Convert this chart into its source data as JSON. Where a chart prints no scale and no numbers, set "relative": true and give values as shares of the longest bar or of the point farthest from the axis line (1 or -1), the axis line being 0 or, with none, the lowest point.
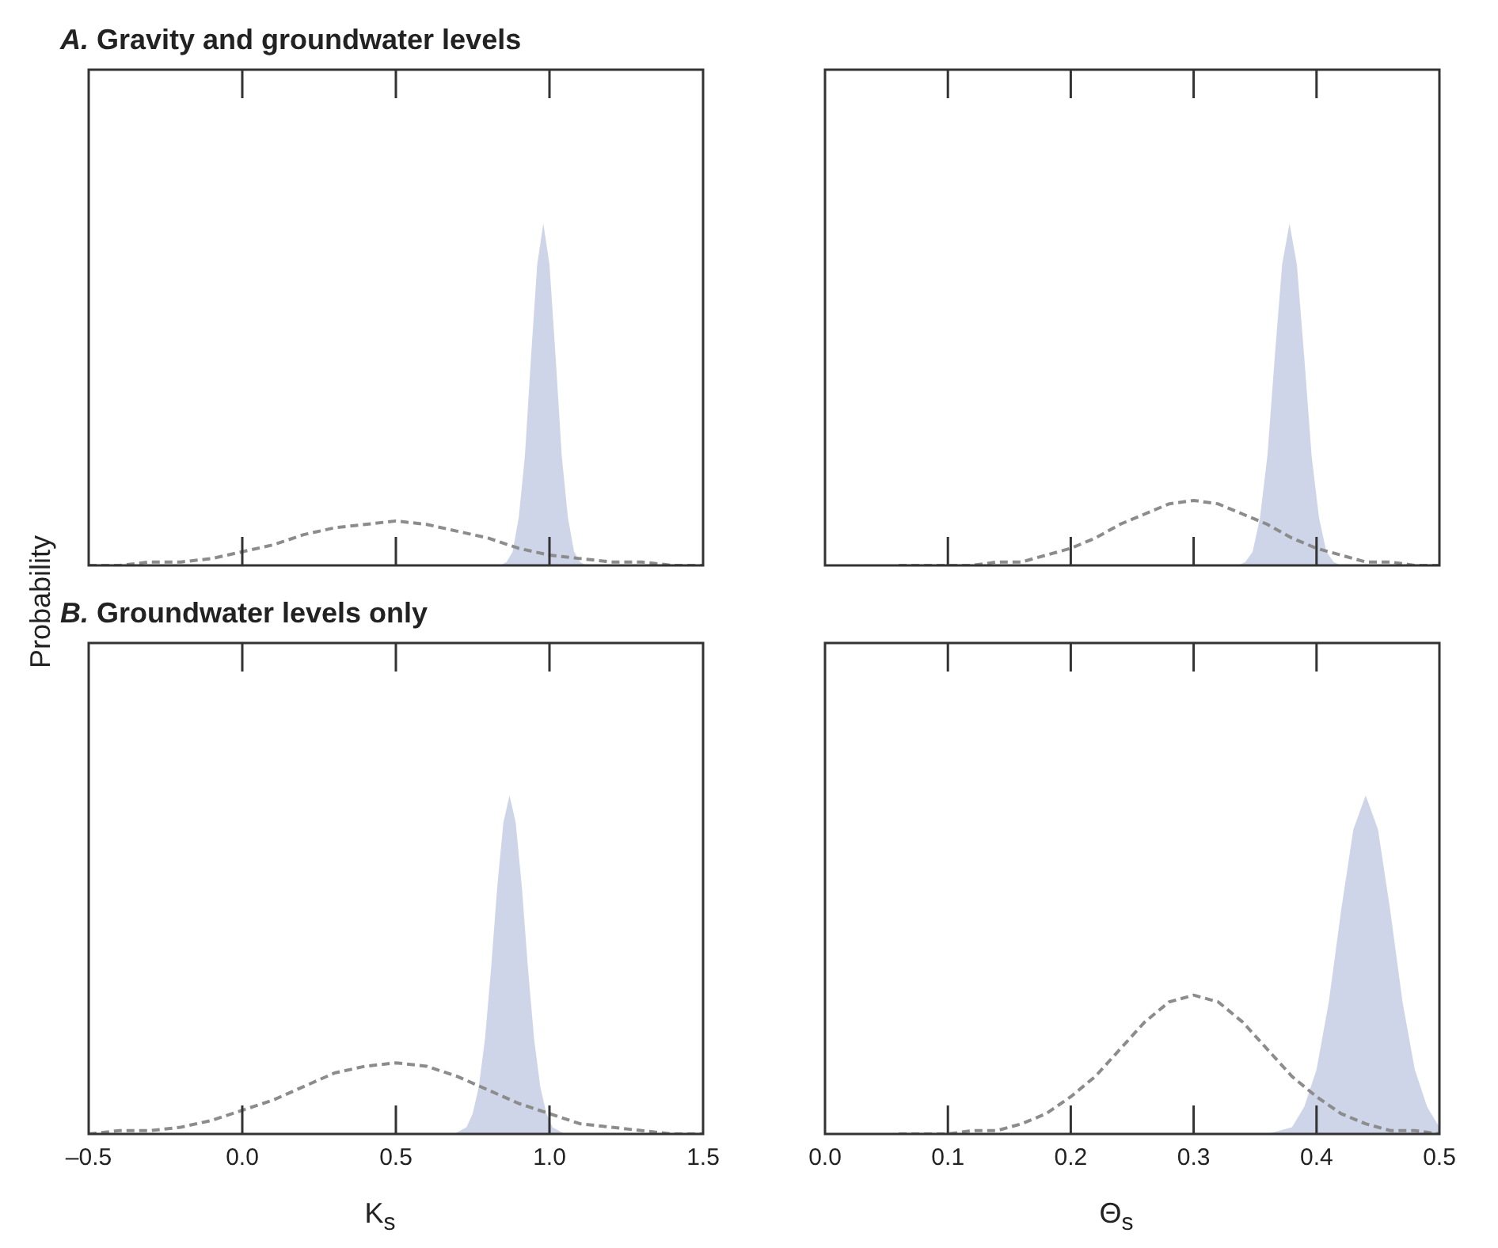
{
  "chart_data": [
    {
      "type": "line",
      "title": "A.  Gravity and groundwater levels",
      "ylabel": "Probability",
      "relative": true,
      "tick_labels": false,
      "xlim": [
        -0.5,
        1.5
      ],
      "xticks": [
        {
          "value": -0.5,
          "label": null
        },
        {
          "value": 0,
          "label": null
        },
        {
          "value": 0.5,
          "label": null
        },
        {
          "value": 1,
          "label": null
        },
        {
          "value": 1.5,
          "label": null
        }
      ],
      "series": [
        {
          "type": "area",
          "color": "#ced5e8",
          "x": [
            0.82,
            0.84,
            0.86,
            0.88,
            0.9,
            0.92,
            0.94,
            0.96,
            0.98,
            1.0,
            1.02,
            1.04,
            1.06,
            1.08,
            1.1,
            1.12,
            1.14
          ],
          "values": [
            0,
            0.0,
            0.01,
            0.04,
            0.14,
            0.32,
            0.61,
            0.88,
            1,
            0.88,
            0.61,
            0.32,
            0.14,
            0.04,
            0.01,
            0.0,
            0
          ]
        },
        {
          "type": "line",
          "line_style": "dashed",
          "color": "#8c8c8c",
          "x": [
            -0.5,
            -0.4,
            -0.3,
            -0.2,
            -0.1,
            0,
            0.1,
            0.2,
            0.3,
            0.4,
            0.5,
            0.6,
            0.7,
            0.8,
            0.9,
            1.0,
            1.1,
            1.2,
            1.3,
            1.4,
            1.5
          ],
          "values": [
            0,
            0,
            0.01,
            0.01,
            0.02,
            0.04,
            0.06,
            0.09,
            0.11,
            0.12,
            0.13,
            0.12,
            0.1,
            0.08,
            0.05,
            0.03,
            0.02,
            0.01,
            0.01,
            0,
            0
          ]
        }
      ]
    },
    {
      "type": "line",
      "relative": true,
      "tick_labels": false,
      "xlim": [
        0,
        0.5
      ],
      "xticks": [
        {
          "value": 0,
          "label": null
        },
        {
          "value": 0.1,
          "label": null
        },
        {
          "value": 0.2,
          "label": null
        },
        {
          "value": 0.3,
          "label": null
        },
        {
          "value": 0.4,
          "label": null
        },
        {
          "value": 0.5,
          "label": null
        }
      ],
      "series": [
        {
          "type": "area",
          "color": "#ced5e8",
          "x": [
            0.33,
            0.336,
            0.342,
            0.348,
            0.354,
            0.36,
            0.366,
            0.372,
            0.378,
            0.384,
            0.39,
            0.396,
            0.402,
            0.408,
            0.414,
            0.42,
            0.426
          ],
          "values": [
            0,
            0,
            0.01,
            0.04,
            0.14,
            0.32,
            0.61,
            0.88,
            1,
            0.88,
            0.61,
            0.32,
            0.14,
            0.04,
            0.01,
            0,
            0
          ]
        },
        {
          "type": "line",
          "line_style": "dashed",
          "color": "#8c8c8c",
          "x": [
            0.06,
            0.08,
            0.1,
            0.12,
            0.14,
            0.16,
            0.18,
            0.2,
            0.22,
            0.24,
            0.26,
            0.28,
            0.3,
            0.32,
            0.34,
            0.36,
            0.38,
            0.4,
            0.42,
            0.44,
            0.46,
            0.48,
            0.5
          ],
          "values": [
            0,
            0,
            0,
            0,
            0.01,
            0.01,
            0.03,
            0.05,
            0.08,
            0.12,
            0.15,
            0.18,
            0.19,
            0.18,
            0.15,
            0.12,
            0.08,
            0.05,
            0.03,
            0.01,
            0.01,
            0,
            0
          ]
        }
      ]
    },
    {
      "type": "line",
      "title": "B.  Groundwater levels only",
      "xlabel": "K$_{s}$",
      "relative": true,
      "tick_labels": "x",
      "xlim": [
        -0.5,
        1.5
      ],
      "xticks": [
        {
          "value": -0.5,
          "label": "–0.5"
        },
        {
          "value": 0,
          "label": "0.0"
        },
        {
          "value": 0.5,
          "label": "0.5"
        },
        {
          "value": 1,
          "label": "1.0"
        },
        {
          "value": 1.5,
          "label": "1.5"
        }
      ],
      "series": [
        {
          "type": "area",
          "color": "#ced5e8",
          "x": [
            0.67,
            0.69,
            0.71,
            0.73,
            0.75,
            0.77,
            0.79,
            0.81,
            0.83,
            0.85,
            0.87,
            0.89,
            0.91,
            0.93,
            0.95,
            0.97,
            0.99,
            1.01,
            1.03,
            1.05,
            1.07
          ],
          "values": [
            0,
            0,
            0.01,
            0.02,
            0.06,
            0.14,
            0.28,
            0.49,
            0.73,
            0.92,
            1,
            0.92,
            0.73,
            0.49,
            0.28,
            0.14,
            0.06,
            0.02,
            0.01,
            0,
            0
          ]
        },
        {
          "type": "line",
          "line_style": "dashed",
          "color": "#8c8c8c",
          "x": [
            -0.5,
            -0.4,
            -0.3,
            -0.2,
            -0.1,
            0,
            0.1,
            0.2,
            0.3,
            0.4,
            0.5,
            0.6,
            0.7,
            0.8,
            0.9,
            1.0,
            1.1,
            1.2,
            1.3,
            1.4,
            1.5
          ],
          "values": [
            0,
            0.01,
            0.01,
            0.02,
            0.04,
            0.07,
            0.1,
            0.14,
            0.18,
            0.2,
            0.21,
            0.2,
            0.17,
            0.13,
            0.09,
            0.06,
            0.03,
            0.02,
            0.01,
            0,
            0
          ]
        }
      ]
    },
    {
      "type": "line",
      "xlabel": "Θ$_{s}$",
      "relative": true,
      "tick_labels": "x",
      "xlim": [
        0,
        0.5
      ],
      "xticks": [
        {
          "value": 0,
          "label": "0.0"
        },
        0.1,
        0.2,
        0.3,
        0.4,
        0.5
      ],
      "series": [
        {
          "type": "area",
          "color": "#ced5e8",
          "x": [
            0.36,
            0.37,
            0.38,
            0.39,
            0.4,
            0.41,
            0.42,
            0.43,
            0.44,
            0.45,
            0.46,
            0.47,
            0.48,
            0.49,
            0.5
          ],
          "values": [
            0,
            0.01,
            0.02,
            0.08,
            0.19,
            0.39,
            0.66,
            0.9,
            1,
            0.9,
            0.66,
            0.39,
            0.19,
            0.08,
            0.02
          ]
        },
        {
          "type": "line",
          "line_style": "dashed",
          "color": "#8c8c8c",
          "x": [
            0.06,
            0.08,
            0.1,
            0.12,
            0.14,
            0.16,
            0.18,
            0.2,
            0.22,
            0.24,
            0.26,
            0.28,
            0.3,
            0.32,
            0.34,
            0.36,
            0.38,
            0.4,
            0.42,
            0.44,
            0.46,
            0.48,
            0.5
          ],
          "values": [
            0,
            0,
            0,
            0.01,
            0.01,
            0.03,
            0.06,
            0.11,
            0.17,
            0.25,
            0.33,
            0.39,
            0.41,
            0.39,
            0.33,
            0.25,
            0.17,
            0.11,
            0.06,
            0.03,
            0.01,
            0.01,
            0
          ]
        }
      ]
    }
  ]
}
